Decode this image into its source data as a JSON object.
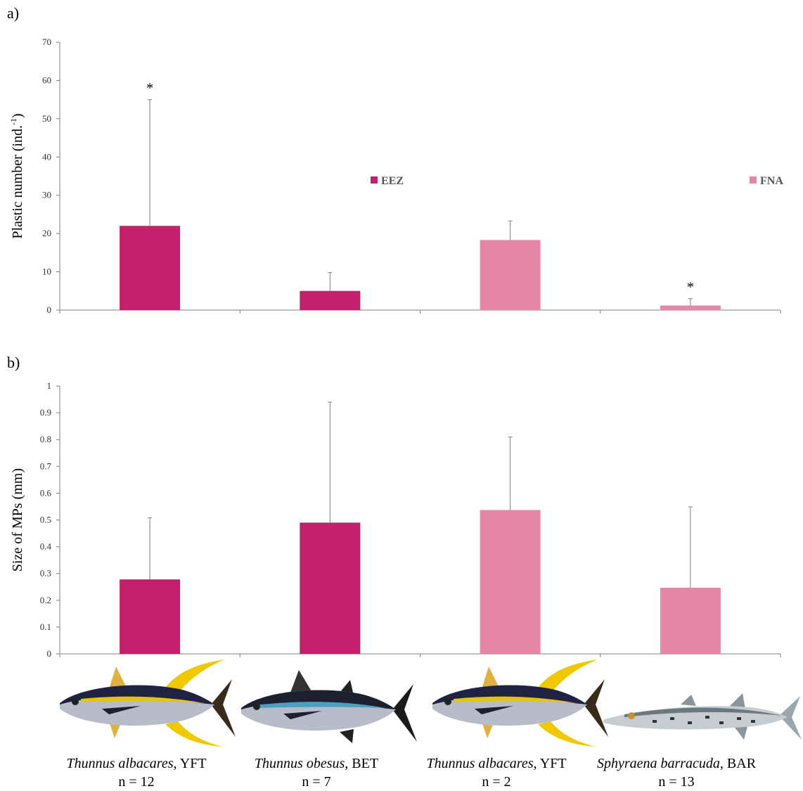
{
  "colors": {
    "EEZ": "#c2206b",
    "FNA": "#e586a6",
    "axis": "#7f7f7f",
    "error": "#7f7f7f"
  },
  "chart_data": [
    {
      "panel": "a)",
      "type": "bar",
      "ylabel": "Plastic number (ind.",
      "ylabel_sup": "-1",
      "ylabel_close": ")",
      "ylim": [
        0,
        70
      ],
      "yticks": [
        "0",
        "10",
        "20",
        "30",
        "40",
        "50",
        "60",
        "70"
      ],
      "categories": [
        "Thunnus albacares, YFT",
        "Thunnus obesus, BET",
        "Thunnus albacares, YFT",
        "Sphyraena barracuda, BAR"
      ],
      "groups": [
        "EEZ",
        "EEZ",
        "FNA",
        "FNA"
      ],
      "values": [
        22,
        5,
        18.3,
        1.2
      ],
      "errors": [
        33,
        4.8,
        5,
        1.8
      ],
      "annotations": [
        "*",
        "",
        "",
        "*"
      ],
      "legend": [
        "EEZ",
        "FNA"
      ]
    },
    {
      "panel": "b)",
      "type": "bar",
      "ylabel": "Size of MPs (mm)",
      "ylim": [
        0,
        1
      ],
      "yticks": [
        "0",
        "0.1",
        "0.2",
        "0.3",
        "0.4",
        "0.5",
        "0.6",
        "0.7",
        "0.8",
        "0.9",
        "1"
      ],
      "categories": [
        "Thunnus albacares, YFT",
        "Thunnus obesus, BET",
        "Thunnus albacares, YFT",
        "Sphyraena barracuda, BAR"
      ],
      "groups": [
        "EEZ",
        "EEZ",
        "FNA",
        "FNA"
      ],
      "values": [
        0.278,
        0.49,
        0.537,
        0.247
      ],
      "errors": [
        0.23,
        0.45,
        0.273,
        0.302
      ]
    }
  ],
  "species": [
    {
      "sci": "Thunnus albacares",
      "code": ", YFT",
      "n": "n = 12",
      "icon": "yellowfin-tuna-icon"
    },
    {
      "sci": "Thunnus obesus",
      "code": ", BET",
      "n": "n = 7",
      "icon": "bigeye-tuna-icon"
    },
    {
      "sci": "Thunnus albacares",
      "code": ", YFT",
      "n": "n = 2",
      "icon": "yellowfin-tuna-icon"
    },
    {
      "sci": "Sphyraena barracuda",
      "code": ", BAR",
      "n": "n = 13",
      "icon": "barracuda-icon"
    }
  ]
}
